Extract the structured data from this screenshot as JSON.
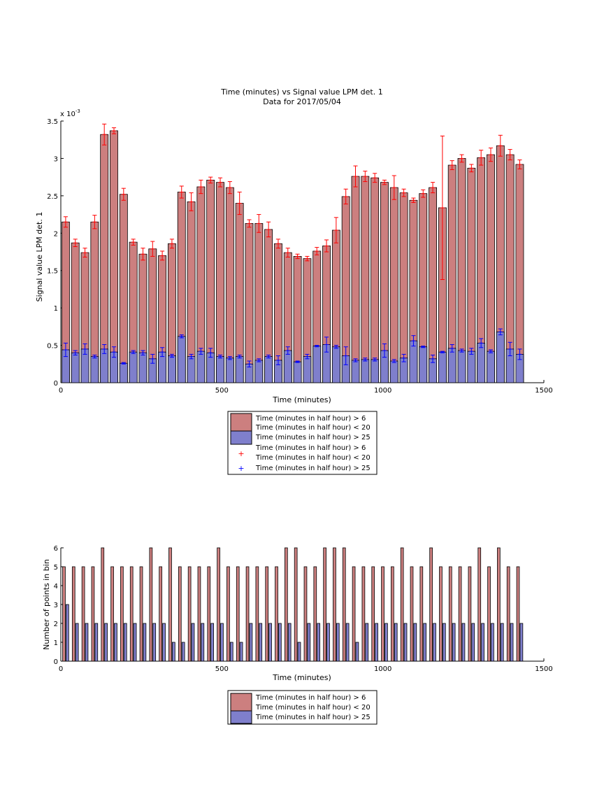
{
  "figure": {
    "title_line1": "Time (minutes) vs Signal value LPM det. 1",
    "title_line2": "Data for 2017/05/04"
  },
  "colors": {
    "red_fill": "#cc7f7f",
    "blue_fill": "#7f7fcc",
    "red_err": "#ff0000",
    "blue_err": "#0000ff",
    "axis": "#000000"
  },
  "chart_data": [
    {
      "type": "bar",
      "title": "Time (minutes) vs Signal value LPM det. 1",
      "subtitle": "Data for 2017/05/04",
      "xlabel": "Time (minutes)",
      "ylabel": "Signal value LPM det. 1",
      "y_multiplier": "x 10",
      "y_exponent": "-3",
      "xlim": [
        0,
        1500
      ],
      "ylim": [
        0,
        3.5
      ],
      "xticks": [
        0,
        500,
        1000,
        1500
      ],
      "yticks": [
        0,
        0.5,
        1,
        1.5,
        2,
        2.5,
        3,
        3.5
      ],
      "grid": false,
      "legend_position": "below",
      "legend": [
        "Time (minutes in half hour) > 6",
        "Time (minutes in half hour) < 20",
        "Time (minutes in half hour) > 25",
        "Time (minutes in half hour) > 6",
        "Time (minutes in half hour) < 20",
        "Time (minutes in half hour) > 25"
      ],
      "x": [
        15,
        45,
        75,
        105,
        135,
        165,
        195,
        225,
        255,
        285,
        315,
        345,
        375,
        405,
        435,
        465,
        495,
        525,
        555,
        585,
        615,
        645,
        675,
        705,
        735,
        765,
        795,
        825,
        855,
        885,
        915,
        945,
        975,
        1005,
        1035,
        1065,
        1095,
        1125,
        1155,
        1185,
        1215,
        1245,
        1275,
        1305,
        1335,
        1365,
        1395,
        1425
      ],
      "series": [
        {
          "name": "Time (minutes in half hour) > 6 / < 20",
          "values": [
            2.15,
            1.87,
            1.74,
            2.15,
            3.32,
            3.37,
            2.52,
            1.88,
            1.72,
            1.79,
            1.7,
            1.86,
            2.55,
            2.42,
            2.62,
            2.71,
            2.68,
            2.61,
            2.4,
            2.13,
            2.13,
            2.05,
            1.86,
            1.74,
            1.69,
            1.66,
            1.76,
            1.83,
            2.04,
            2.49,
            2.76,
            2.76,
            2.74,
            2.68,
            2.61,
            2.54,
            2.44,
            2.53,
            2.61,
            2.34,
            2.91,
            3.0,
            2.87,
            3.01,
            3.05,
            3.17,
            3.05,
            2.92
          ],
          "err": [
            0.07,
            0.05,
            0.06,
            0.09,
            0.14,
            0.04,
            0.08,
            0.04,
            0.08,
            0.1,
            0.06,
            0.06,
            0.08,
            0.12,
            0.09,
            0.04,
            0.06,
            0.08,
            0.15,
            0.05,
            0.12,
            0.1,
            0.06,
            0.06,
            0.03,
            0.03,
            0.05,
            0.08,
            0.17,
            0.1,
            0.14,
            0.07,
            0.06,
            0.03,
            0.16,
            0.05,
            0.03,
            0.05,
            0.07,
            0.96,
            0.06,
            0.05,
            0.05,
            0.1,
            0.09,
            0.14,
            0.07,
            0.06
          ]
        },
        {
          "name": "Time (minutes in half hour) > 25",
          "values": [
            0.44,
            0.4,
            0.45,
            0.35,
            0.45,
            0.41,
            0.26,
            0.41,
            0.4,
            0.32,
            0.41,
            0.36,
            0.62,
            0.35,
            0.42,
            0.4,
            0.35,
            0.33,
            0.35,
            0.25,
            0.3,
            0.35,
            0.3,
            0.43,
            0.28,
            0.35,
            0.49,
            0.51,
            0.48,
            0.36,
            0.3,
            0.31,
            0.31,
            0.43,
            0.29,
            0.33,
            0.56,
            0.48,
            0.32,
            0.41,
            0.46,
            0.43,
            0.42,
            0.53,
            0.42,
            0.68,
            0.45,
            0.38
          ],
          "err": [
            0.09,
            0.03,
            0.07,
            0.02,
            0.06,
            0.07,
            0.01,
            0.02,
            0.03,
            0.06,
            0.06,
            0.02,
            0.02,
            0.03,
            0.04,
            0.06,
            0.02,
            0.02,
            0.02,
            0.04,
            0.02,
            0.02,
            0.06,
            0.05,
            0.01,
            0.03,
            0.01,
            0.1,
            0.02,
            0.12,
            0.02,
            0.02,
            0.02,
            0.09,
            0.02,
            0.05,
            0.07,
            0.01,
            0.05,
            0.01,
            0.05,
            0.02,
            0.04,
            0.06,
            0.02,
            0.04,
            0.09,
            0.07
          ]
        }
      ]
    },
    {
      "type": "bar",
      "title": "",
      "xlabel": "Time (minutes)",
      "ylabel": "Number of points in bin",
      "xlim": [
        0,
        1500
      ],
      "ylim": [
        0,
        6
      ],
      "xticks": [
        0,
        500,
        1000,
        1500
      ],
      "yticks": [
        0,
        1,
        2,
        3,
        4,
        5,
        6
      ],
      "grid": false,
      "legend_position": "below",
      "legend": [
        "Time (minutes in half hour) > 6",
        "Time (minutes in half hour) < 20",
        "Time (minutes in half hour) > 25"
      ],
      "x": [
        15,
        45,
        75,
        105,
        135,
        165,
        195,
        225,
        255,
        285,
        315,
        345,
        375,
        405,
        435,
        465,
        495,
        525,
        555,
        585,
        615,
        645,
        675,
        705,
        735,
        765,
        795,
        825,
        855,
        885,
        915,
        945,
        975,
        1005,
        1035,
        1065,
        1095,
        1125,
        1155,
        1185,
        1215,
        1245,
        1275,
        1305,
        1335,
        1365,
        1395,
        1425
      ],
      "series": [
        {
          "name": "Time (minutes in half hour) > 6 / < 20",
          "values": [
            5,
            5,
            5,
            5,
            6,
            5,
            5,
            5,
            5,
            6,
            5,
            6,
            5,
            5,
            5,
            5,
            6,
            5,
            5,
            5,
            5,
            5,
            5,
            6,
            6,
            5,
            5,
            6,
            6,
            6,
            5,
            5,
            5,
            5,
            5,
            6,
            5,
            5,
            6,
            5,
            5,
            5,
            5,
            6,
            5,
            6,
            5,
            5
          ]
        },
        {
          "name": "Time (minutes in half hour) > 25",
          "values": [
            3,
            2,
            2,
            2,
            2,
            2,
            2,
            2,
            2,
            2,
            2,
            1,
            1,
            2,
            2,
            2,
            2,
            1,
            1,
            2,
            2,
            2,
            2,
            2,
            1,
            2,
            2,
            2,
            2,
            2,
            1,
            2,
            2,
            2,
            2,
            2,
            2,
            2,
            2,
            2,
            2,
            2,
            2,
            2,
            2,
            2,
            2,
            2
          ]
        }
      ]
    }
  ]
}
